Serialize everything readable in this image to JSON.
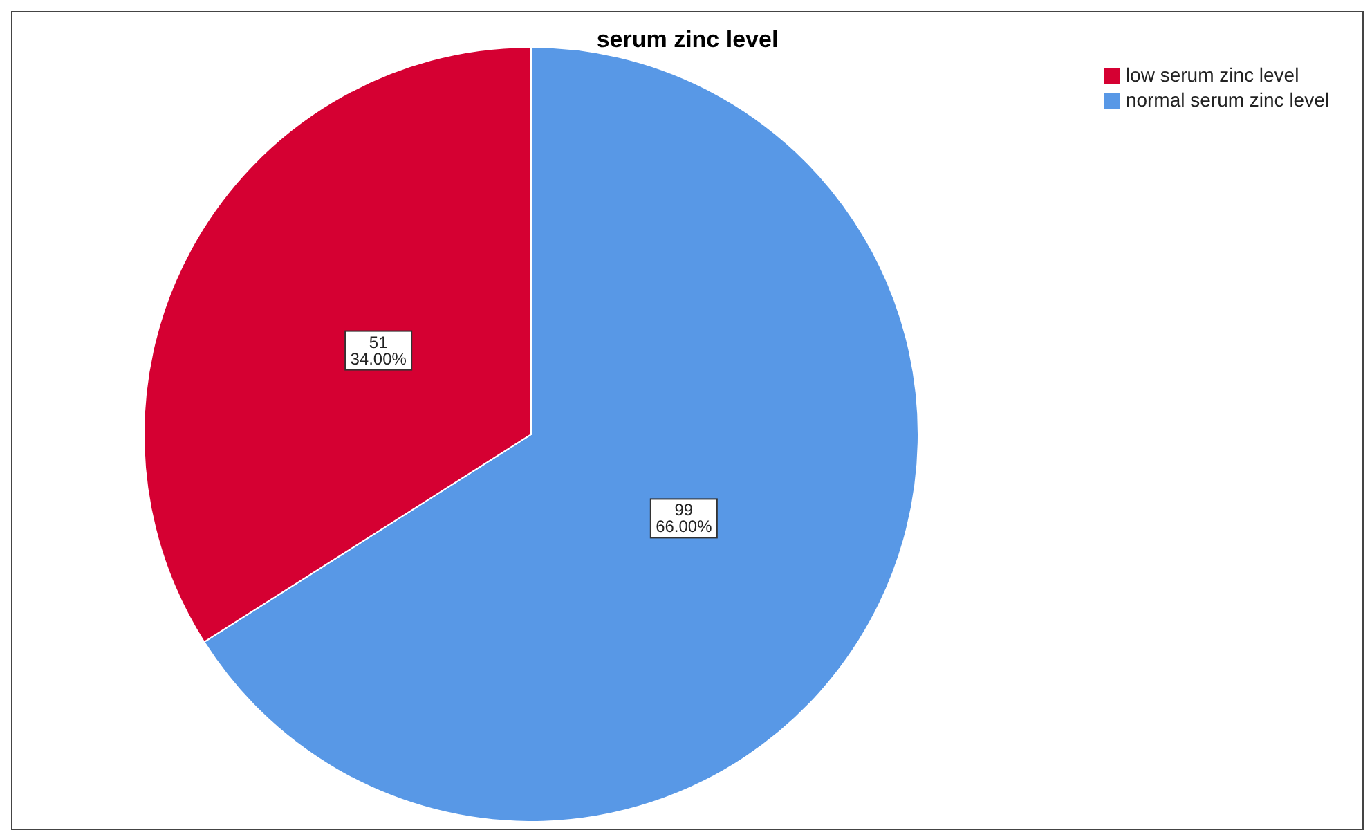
{
  "chart_data": {
    "type": "pie",
    "title": "serum zinc level",
    "categories": [
      "normal serum zinc level",
      "low serum zinc level"
    ],
    "values": [
      99,
      51
    ],
    "colors": [
      "#5898e6",
      "#d50032"
    ],
    "value_labels": [
      "99\n66.00%",
      "51\n34.00%"
    ],
    "legend": "top right"
  }
}
